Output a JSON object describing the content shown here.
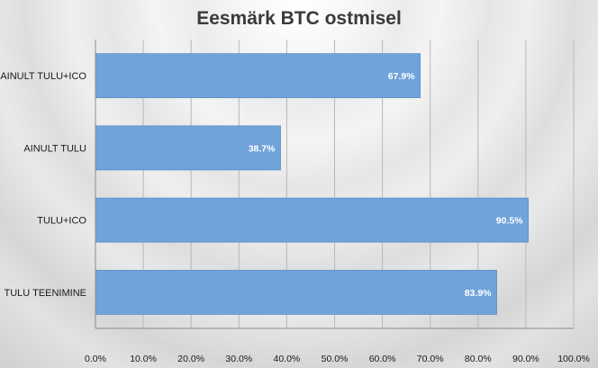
{
  "chart_data": {
    "type": "bar",
    "orientation": "horizontal",
    "title": "Eesmärk BTC ostmisel",
    "categories": [
      "AINULT TULU+ICO",
      "AINULT TULU",
      "TULU+ICO",
      "TULU TEENIMINE"
    ],
    "values": [
      67.9,
      38.7,
      90.5,
      83.9
    ],
    "value_labels": [
      "67.9%",
      "38.7%",
      "90.5%",
      "83.9%"
    ],
    "xlim": [
      0,
      100
    ],
    "x_ticks": [
      0,
      10,
      20,
      30,
      40,
      50,
      60,
      70,
      80,
      90,
      100
    ],
    "x_tick_labels": [
      "0.0%",
      "10.0%",
      "20.0%",
      "30.0%",
      "40.0%",
      "50.0%",
      "60.0%",
      "70.0%",
      "80.0%",
      "90.0%",
      "100.0%"
    ],
    "grid": true,
    "legend": "none",
    "colors": {
      "bar": "#6fa3da",
      "bar_edge": "#5b8fc8",
      "grid": "#b8b8b8",
      "axis": "#8c8c8c"
    }
  }
}
